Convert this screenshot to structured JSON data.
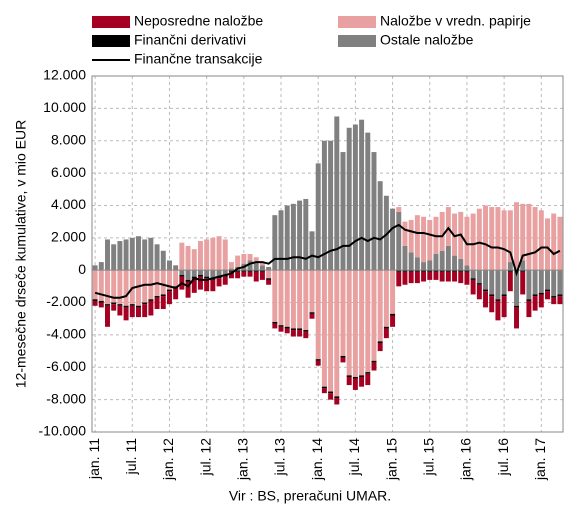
{
  "chart_data": {
    "type": "bar",
    "y_label": "12-mesečne drseče kumulative, v mio EUR",
    "source": "Vir : BS, preračuni UMAR.",
    "categories": [
      "jan. 11",
      null,
      null,
      null,
      null,
      null,
      "jul. 11",
      null,
      null,
      null,
      null,
      null,
      "jan. 12",
      null,
      null,
      null,
      null,
      null,
      "jul. 12",
      null,
      null,
      null,
      null,
      null,
      "jan. 13",
      null,
      null,
      null,
      null,
      null,
      "jul. 13",
      null,
      null,
      null,
      null,
      null,
      "jan. 14",
      null,
      null,
      null,
      null,
      null,
      "jul. 14",
      null,
      null,
      null,
      null,
      null,
      "jan. 15",
      null,
      null,
      null,
      null,
      null,
      "jul. 15",
      null,
      null,
      null,
      null,
      null,
      "jan. 16",
      null,
      null,
      null,
      null,
      null,
      "jul. 16",
      null,
      null,
      null,
      null,
      null,
      "jan. 17",
      null,
      null,
      null
    ],
    "series": [
      {
        "name": "Neposredne naložbe",
        "color": "#a50021",
        "values": [
          -300,
          -300,
          -1300,
          -400,
          -600,
          -800,
          -700,
          -600,
          -800,
          -900,
          -700,
          -800,
          -800,
          -700,
          -800,
          -1000,
          -900,
          -800,
          -800,
          -700,
          -500,
          -500,
          -400,
          -400,
          -300,
          -300,
          -600,
          -500,
          -300,
          -300,
          -300,
          -300,
          -400,
          -400,
          -400,
          -300,
          -300,
          -300,
          -400,
          -400,
          -300,
          -500,
          -700,
          -600,
          -700,
          -500,
          -500,
          -600,
          -700,
          -900,
          -800,
          -700,
          -700,
          -600,
          -500,
          -500,
          -600,
          -600,
          -600,
          -700,
          -800,
          -900,
          -900,
          -1000,
          -1000,
          -1200,
          -1300,
          -1200,
          -1300,
          -1400,
          -1000,
          -900,
          -800,
          -500,
          -400,
          -500
        ]
      },
      {
        "name": "Naložbe v vredn. papirje",
        "color": "#e8a0a0",
        "values": [
          -1800,
          -1900,
          -2100,
          -2000,
          -2100,
          -2200,
          -2100,
          -2200,
          -2000,
          -1800,
          -1600,
          -1500,
          -1200,
          -1000,
          1700,
          1500,
          1300,
          1800,
          1900,
          2000,
          2100,
          1900,
          400,
          700,
          600,
          400,
          300,
          200,
          -500,
          -3200,
          -3400,
          -3500,
          -3600,
          -3600,
          -3700,
          -2600,
          -5500,
          -7200,
          -7500,
          -7800,
          -5300,
          -6500,
          -6600,
          -6500,
          -6300,
          -5600,
          -4400,
          -3500,
          -2700,
          300,
          1500,
          2000,
          2600,
          2800,
          2500,
          2300,
          2400,
          2400,
          2600,
          2900,
          3000,
          3500,
          3800,
          4000,
          3900,
          3900,
          3700,
          3200,
          4200,
          3500,
          4100,
          3900,
          3700,
          3200,
          3500,
          3300
        ]
      },
      {
        "name": "Finančni derivativi",
        "color": "#000000",
        "values": [
          -100,
          -100,
          -100,
          -100,
          -100,
          -100,
          -100,
          -100,
          -100,
          -100,
          -100,
          -100,
          -100,
          -100,
          -100,
          -100,
          -100,
          -100,
          -100,
          -100,
          -100,
          -100,
          -100,
          -100,
          -100,
          -100,
          -100,
          -100,
          -100,
          -100,
          -100,
          -100,
          -100,
          -100,
          -100,
          -100,
          -100,
          -100,
          -100,
          -100,
          -100,
          -100,
          -100,
          -100,
          -100,
          -100,
          -100,
          -100,
          -100,
          -100,
          -100,
          -100,
          -100,
          -100,
          -100,
          -100,
          -100,
          -100,
          -100,
          -100,
          -100,
          -100,
          -100,
          -100,
          -100,
          -100,
          -100,
          -100,
          -100,
          -100,
          -100,
          -100,
          -100,
          -100,
          -100,
          -100
        ]
      },
      {
        "name": "Ostale naložbe",
        "color": "#808080",
        "values": [
          300,
          500,
          1900,
          1600,
          1800,
          1900,
          2000,
          2100,
          1900,
          2000,
          1600,
          1200,
          600,
          300,
          -300,
          -600,
          -400,
          -300,
          -400,
          -500,
          -400,
          -300,
          100,
          200,
          400,
          600,
          500,
          300,
          200,
          3400,
          3700,
          4000,
          4100,
          4300,
          4400,
          2400,
          6600,
          8000,
          8000,
          9500,
          7300,
          8800,
          9000,
          9300,
          8500,
          7300,
          5500,
          4600,
          3800,
          3600,
          1500,
          1100,
          800,
          500,
          600,
          1000,
          1200,
          1500,
          900,
          700,
          300,
          -500,
          -800,
          -1200,
          -1500,
          -1800,
          -1500,
          500,
          -2200,
          600,
          -1800,
          -1500,
          -1400,
          -1200,
          -1600,
          -1500
        ]
      },
      {
        "name": "Finančne transakcije",
        "color": "#000000",
        "type": "line",
        "values": [
          -1400,
          -1500,
          -1600,
          -1700,
          -1700,
          -1600,
          -1100,
          -1000,
          -900,
          -900,
          -800,
          -900,
          -1000,
          -1100,
          -800,
          -1000,
          -500,
          -600,
          -600,
          -500,
          -400,
          -300,
          -200,
          100,
          200,
          400,
          500,
          500,
          400,
          700,
          700,
          700,
          800,
          800,
          700,
          900,
          800,
          1000,
          1200,
          1300,
          1500,
          1500,
          1800,
          2000,
          1800,
          2000,
          1900,
          2200,
          2600,
          2800,
          2500,
          2400,
          2300,
          2300,
          2200,
          2100,
          2100,
          2600,
          2100,
          2200,
          1600,
          1600,
          1700,
          1600,
          1400,
          1400,
          1300,
          1100,
          -200,
          900,
          1000,
          1100,
          1400,
          1400,
          1000,
          1200
        ]
      }
    ],
    "ylim": [
      -10000,
      12000
    ],
    "yticks": [
      {
        "value": -10000,
        "label": "-10.000"
      },
      {
        "value": -8000,
        "label": "-8.000"
      },
      {
        "value": -6000,
        "label": "-6.000"
      },
      {
        "value": -4000,
        "label": "-4.000"
      },
      {
        "value": -2000,
        "label": "-2.000"
      },
      0,
      {
        "value": 2000,
        "label": "2.000"
      },
      {
        "value": 4000,
        "label": "4.000"
      },
      {
        "value": 6000,
        "label": "6.000"
      },
      {
        "value": 8000,
        "label": "8.000"
      },
      {
        "value": 10000,
        "label": "10.000"
      },
      {
        "value": 12000,
        "label": "12.000"
      }
    ],
    "grid": true
  }
}
